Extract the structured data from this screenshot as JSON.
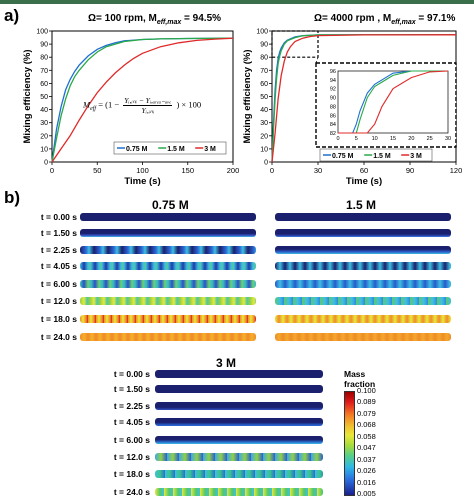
{
  "panels": {
    "a_label": "a)",
    "b_label": "b)"
  },
  "chart_data": [
    {
      "type": "line",
      "title": "Ω= 100 rpm, M",
      "title_sub": "eff,max",
      "title_tail": " = 94.5%",
      "xlabel": "Time (s)",
      "ylabel": "Mixing efficiency (%)",
      "xlim": [
        0,
        200
      ],
      "ylim": [
        0,
        100
      ],
      "xticks": [
        "0",
        "50",
        "100",
        "150",
        "200"
      ],
      "yticks": [
        "0",
        "10",
        "20",
        "30",
        "40",
        "50",
        "60",
        "70",
        "80",
        "90",
        "100"
      ],
      "grid": false,
      "legend": "bottom-right",
      "series": [
        {
          "name": "0.75 M",
          "color": "#1f6fd1",
          "x": [
            0,
            5,
            10,
            15,
            20,
            25,
            30,
            40,
            50,
            60,
            70,
            80,
            100,
            120,
            150,
            200
          ],
          "y": [
            0,
            25,
            42,
            55,
            63,
            69,
            74,
            81,
            86,
            89,
            91,
            92.5,
            93.5,
            94,
            94.3,
            94.5
          ]
        },
        {
          "name": "1.5 M",
          "color": "#2aa84a",
          "x": [
            0,
            5,
            10,
            15,
            20,
            25,
            30,
            40,
            50,
            60,
            70,
            80,
            100,
            120,
            150,
            200
          ],
          "y": [
            0,
            18,
            35,
            48,
            58,
            65,
            70,
            78,
            84,
            88,
            90,
            92,
            93.5,
            94,
            94.3,
            94.5
          ]
        },
        {
          "name": "3 M",
          "color": "#e02a2a",
          "x": [
            0,
            10,
            20,
            30,
            40,
            50,
            60,
            70,
            80,
            90,
            100,
            120,
            140,
            160,
            180,
            200
          ],
          "y": [
            0,
            10,
            20,
            32,
            43,
            53,
            61,
            68,
            74,
            79,
            83,
            88,
            91,
            92.8,
            93.8,
            94.5
          ]
        }
      ],
      "equation": {
        "lhs": "M",
        "lhs_sub": "eff",
        "num": "Yᵢ,ᵢₙᵢ − Yᵢ,ₐᵣₑₐ₋ₐᵥₑ",
        "den": "Yᵢ,ᵢₙᵢ",
        "tail": "× 100"
      }
    },
    {
      "type": "line",
      "title": "Ω= 4000 rpm , M",
      "title_sub": "eff,max",
      "title_tail": " = 97.1%",
      "xlabel": "Time (s)",
      "ylabel": "Mixing efficiency (%)",
      "xlim": [
        0,
        120
      ],
      "ylim": [
        0,
        100
      ],
      "xticks": [
        "0",
        "30",
        "60",
        "90",
        "120"
      ],
      "yticks": [
        "0",
        "10",
        "20",
        "30",
        "40",
        "50",
        "60",
        "70",
        "80",
        "90",
        "100"
      ],
      "grid": false,
      "legend": "bottom-center",
      "series": [
        {
          "name": "0.75 M",
          "color": "#1f6fd1",
          "x": [
            0,
            1,
            2,
            3,
            4,
            5,
            6,
            8,
            10,
            15,
            20,
            30,
            60,
            120
          ],
          "y": [
            0,
            30,
            55,
            70,
            79,
            84,
            87,
            91,
            93,
            95.5,
            96.5,
            97,
            97.1,
            97.1
          ]
        },
        {
          "name": "1.5 M",
          "color": "#2aa84a",
          "x": [
            0,
            1,
            2,
            3,
            4,
            5,
            6,
            8,
            10,
            15,
            20,
            30,
            60,
            120
          ],
          "y": [
            0,
            25,
            48,
            64,
            75,
            81,
            85,
            90,
            92.5,
            95,
            96.3,
            97,
            97.1,
            97.1
          ]
        },
        {
          "name": "3 M",
          "color": "#e02a2a",
          "x": [
            0,
            2,
            4,
            6,
            8,
            10,
            12,
            15,
            20,
            25,
            30,
            60,
            120
          ],
          "y": [
            0,
            22,
            48,
            66,
            77,
            84,
            88,
            92,
            94.5,
            95.8,
            96.5,
            97,
            97.1
          ]
        }
      ],
      "inset": {
        "xlim": [
          0,
          30
        ],
        "ylim": [
          82,
          96
        ],
        "xticks": [
          "0",
          "5",
          "10",
          "15",
          "20",
          "25",
          "30"
        ],
        "yticks": [
          "82",
          "84",
          "86",
          "88",
          "90",
          "92",
          "94",
          "96"
        ]
      }
    }
  ],
  "fields": {
    "col_0_75": "0.75 M",
    "col_1_5": "1.5 M",
    "col_3": "3 M",
    "times": [
      "t = 0.00 s",
      "t = 1.50 s",
      "t = 2.25 s",
      "t = 4.05 s",
      "t = 6.00 s",
      "t = 12.0 s",
      "t = 18.0 s",
      "t = 24.0 s"
    ],
    "colorbar": {
      "title_line1": "Mass",
      "title_line2": "fraction",
      "ticks": [
        "0.100",
        "0.089",
        "0.079",
        "0.068",
        "0.058",
        "0.047",
        "0.037",
        "0.026",
        "0.016",
        "0.005"
      ]
    },
    "colors": {
      "navy": "#1a1f6e",
      "cyan": "#3fbfe0",
      "green": "#8fd04a",
      "yellow": "#e8e83a",
      "orange": "#f08a2a",
      "red": "#d82020"
    }
  }
}
